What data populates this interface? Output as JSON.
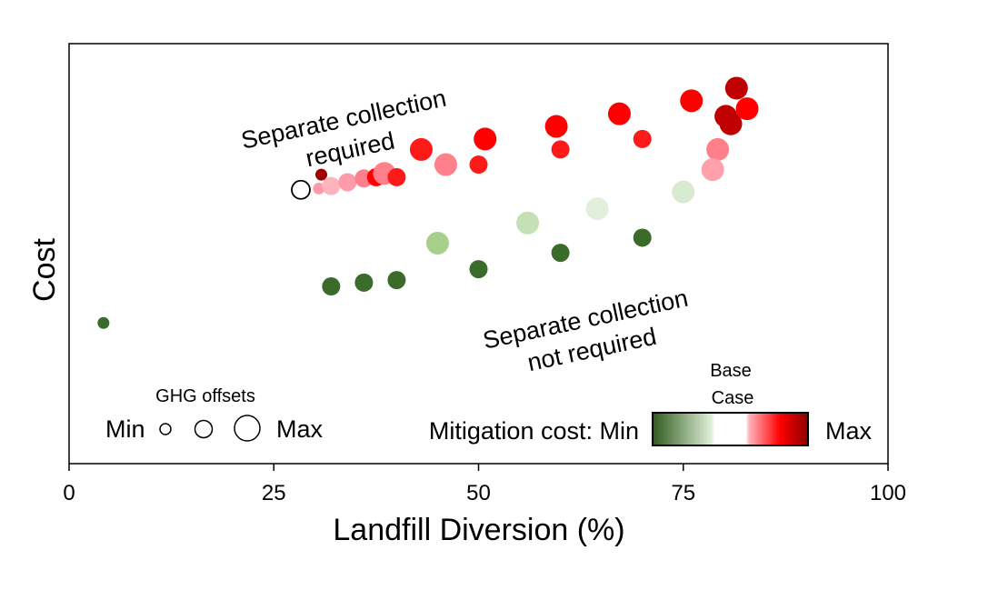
{
  "chart_data": {
    "type": "scatter",
    "xlabel": "Landfill Diversion (%)",
    "ylabel": "Cost",
    "xlim": [
      0,
      100
    ],
    "ylim": [
      0,
      100
    ],
    "xticks": [
      "0",
      "25",
      "50",
      "75",
      "100"
    ],
    "xtick_values": [
      0,
      25,
      50,
      75,
      100
    ],
    "grid": false,
    "annotations": {
      "upper_line1": "Separate collection",
      "upper_line2": "required",
      "lower_line1": "Separate collection",
      "lower_line2": "not required"
    },
    "size_legend": {
      "title": "GHG offsets",
      "min_label": "Min",
      "max_label": "Max"
    },
    "color_legend": {
      "label": "Mitigation cost: Min",
      "max_label": "Max",
      "base_line1": "Base",
      "base_line2": "Case",
      "colors": [
        "#2f5a1e",
        "#dff0d8",
        "#ffffff",
        "#ff9aa8",
        "#ff0000",
        "#8b0000"
      ]
    },
    "points": [
      {
        "x": 4.2,
        "y": 33.5,
        "size": 1,
        "color": "#3b6b2a"
      },
      {
        "x": 32,
        "y": 42.2,
        "size": 2,
        "color": "#3b6b2a"
      },
      {
        "x": 36,
        "y": 43.1,
        "size": 2,
        "color": "#3b6b2a"
      },
      {
        "x": 40,
        "y": 43.7,
        "size": 2,
        "color": "#3b6b2a"
      },
      {
        "x": 45,
        "y": 52.5,
        "size": 3,
        "color": "#a8d08d"
      },
      {
        "x": 50,
        "y": 46.3,
        "size": 2,
        "color": "#3b6b2a"
      },
      {
        "x": 56,
        "y": 57.3,
        "size": 3,
        "color": "#c5e0b4"
      },
      {
        "x": 60,
        "y": 50.2,
        "size": 2,
        "color": "#3b6b2a"
      },
      {
        "x": 64.5,
        "y": 60.7,
        "size": 3,
        "color": "#e2efda"
      },
      {
        "x": 70,
        "y": 53.8,
        "size": 2,
        "color": "#3b6b2a"
      },
      {
        "x": 75,
        "y": 64.7,
        "size": 3,
        "color": "#d9ead3"
      },
      {
        "x": 28.3,
        "y": 65.2,
        "size": 2,
        "color": "#ffffff"
      },
      {
        "x": 30.8,
        "y": 68.8,
        "size": 1,
        "color": "#a00000"
      },
      {
        "x": 30.5,
        "y": 65.5,
        "size": 1,
        "color": "#ff9aa8"
      },
      {
        "x": 32,
        "y": 66.1,
        "size": 2,
        "color": "#ffb3bd"
      },
      {
        "x": 34,
        "y": 67.0,
        "size": 2,
        "color": "#ff9aa8"
      },
      {
        "x": 36,
        "y": 67.9,
        "size": 2,
        "color": "#ff7f8a"
      },
      {
        "x": 37.5,
        "y": 68.2,
        "size": 2,
        "color": "#ff0000"
      },
      {
        "x": 38.5,
        "y": 69.1,
        "size": 3,
        "color": "#ff7f8a"
      },
      {
        "x": 40,
        "y": 68.2,
        "size": 2,
        "color": "#ff1a1a"
      },
      {
        "x": 43,
        "y": 74.8,
        "size": 3,
        "color": "#ff1a1a"
      },
      {
        "x": 46,
        "y": 71.2,
        "size": 3,
        "color": "#ff7f8a"
      },
      {
        "x": 50,
        "y": 71.2,
        "size": 2,
        "color": "#ff1a1a"
      },
      {
        "x": 50.8,
        "y": 77.3,
        "size": 3,
        "color": "#ff0000"
      },
      {
        "x": 59.5,
        "y": 80.3,
        "size": 3,
        "color": "#ff0000"
      },
      {
        "x": 60,
        "y": 74.8,
        "size": 2,
        "color": "#ff1a1a"
      },
      {
        "x": 67.2,
        "y": 83.3,
        "size": 3,
        "color": "#ff0000"
      },
      {
        "x": 70,
        "y": 77.3,
        "size": 2,
        "color": "#ff1a1a"
      },
      {
        "x": 76,
        "y": 86.4,
        "size": 3,
        "color": "#ff0000"
      },
      {
        "x": 79.2,
        "y": 74.8,
        "size": 3,
        "color": "#ff7f8a"
      },
      {
        "x": 78.6,
        "y": 70.0,
        "size": 3,
        "color": "#ffa0aa"
      },
      {
        "x": 80.2,
        "y": 82.7,
        "size": 3,
        "color": "#c00000"
      },
      {
        "x": 80.8,
        "y": 80.9,
        "size": 3,
        "color": "#c00000"
      },
      {
        "x": 81.5,
        "y": 89.4,
        "size": 3,
        "color": "#c00000"
      },
      {
        "x": 82.8,
        "y": 84.5,
        "size": 3,
        "color": "#ff0000"
      }
    ]
  }
}
